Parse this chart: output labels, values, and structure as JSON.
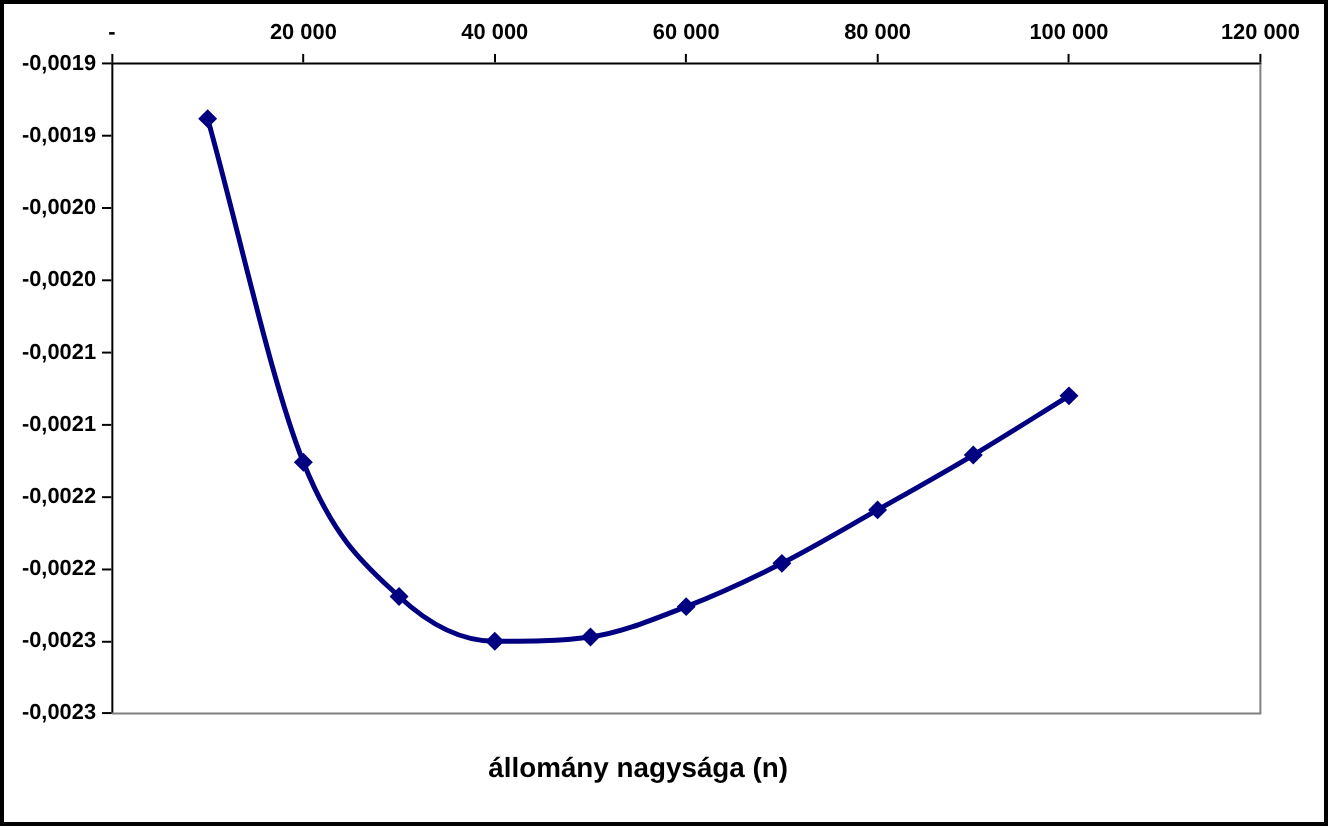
{
  "chart_data": {
    "type": "line",
    "xlabel": "állomány nagysága (n)",
    "x": [
      10000,
      20000,
      30000,
      40000,
      50000,
      60000,
      70000,
      80000,
      90000,
      100000
    ],
    "series": [
      {
        "color": "#000080",
        "values": [
          -0.001888,
          -0.002126,
          -0.002219,
          -0.00225,
          -0.002247,
          -0.002226,
          -0.002196,
          -0.002159,
          -0.002121,
          -0.00208
        ]
      }
    ],
    "xlim": [
      0,
      120000
    ],
    "xticks": [
      {
        "value": 0,
        "label": "-"
      },
      {
        "value": 20000,
        "label": "20 000"
      },
      {
        "value": 40000,
        "label": "40 000"
      },
      {
        "value": 60000,
        "label": "60 000"
      },
      {
        "value": 80000,
        "label": "80 000"
      },
      {
        "value": 100000,
        "label": "100 000"
      },
      {
        "value": 120000,
        "label": "120 000"
      }
    ],
    "ylim": [
      -0.0023,
      -0.00185
    ],
    "yticks": [
      {
        "value": -0.00185,
        "label": "-0,0019"
      },
      {
        "value": -0.0019,
        "label": "-0,0019"
      },
      {
        "value": -0.00195,
        "label": "-0,0020"
      },
      {
        "value": -0.002,
        "label": "-0,0020"
      },
      {
        "value": -0.00205,
        "label": "-0,0021"
      },
      {
        "value": -0.0021,
        "label": "-0,0021"
      },
      {
        "value": -0.00215,
        "label": "-0,0022"
      },
      {
        "value": -0.0022,
        "label": "-0,0022"
      },
      {
        "value": -0.00225,
        "label": "-0,0023"
      },
      {
        "value": -0.0023,
        "label": "-0,0023"
      }
    ],
    "grid": false,
    "legend": false,
    "marker": "diamond",
    "line_style": "solid"
  }
}
